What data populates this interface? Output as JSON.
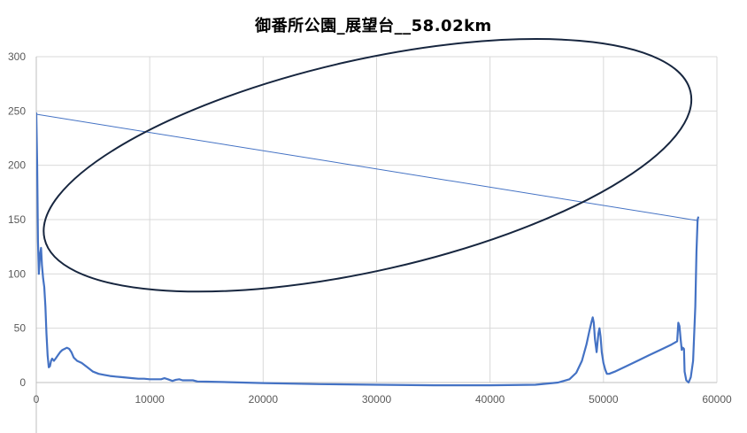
{
  "chart_data": {
    "type": "line",
    "title": "御番所公園_展望台__58.02km",
    "xlabel": "",
    "ylabel": "",
    "xlim": [
      0,
      60000
    ],
    "ylim": [
      0,
      300
    ],
    "x_ticks": [
      0,
      10000,
      20000,
      30000,
      40000,
      50000,
      60000
    ],
    "y_ticks": [
      0,
      50,
      100,
      150,
      200,
      250,
      300
    ],
    "x_tick_labels": [
      "0",
      "10000",
      "20000",
      "30000",
      "40000",
      "50000",
      "60000"
    ],
    "y_tick_labels": [
      "0",
      "50",
      "100",
      "150",
      "200",
      "250",
      "300"
    ],
    "grid": true,
    "legend": "none",
    "series": [
      {
        "color": "#4472c4",
        "points": [
          [
            0,
            248
          ],
          [
            80,
            200
          ],
          [
            150,
            130
          ],
          [
            230,
            100
          ],
          [
            330,
            118
          ],
          [
            420,
            124
          ],
          [
            500,
            108
          ],
          [
            600,
            96
          ],
          [
            700,
            88
          ],
          [
            800,
            70
          ],
          [
            900,
            45
          ],
          [
            1000,
            25
          ],
          [
            1100,
            14
          ],
          [
            1200,
            15
          ],
          [
            1300,
            20
          ],
          [
            1400,
            22
          ],
          [
            1550,
            20
          ],
          [
            1700,
            22
          ],
          [
            1900,
            25
          ],
          [
            2100,
            28
          ],
          [
            2300,
            30
          ],
          [
            2500,
            31
          ],
          [
            2700,
            32
          ],
          [
            2900,
            31
          ],
          [
            3100,
            28
          ],
          [
            3300,
            23
          ],
          [
            3600,
            20
          ],
          [
            4000,
            18
          ],
          [
            4500,
            14
          ],
          [
            5000,
            10
          ],
          [
            5500,
            8
          ],
          [
            6000,
            7
          ],
          [
            6500,
            6
          ],
          [
            7000,
            5.5
          ],
          [
            7500,
            5
          ],
          [
            8000,
            4.5
          ],
          [
            8500,
            4
          ],
          [
            9000,
            3.5
          ],
          [
            9500,
            3.5
          ],
          [
            10000,
            3
          ],
          [
            10500,
            3
          ],
          [
            11000,
            3
          ],
          [
            11300,
            4
          ],
          [
            11600,
            3
          ],
          [
            12000,
            1.5
          ],
          [
            12300,
            2.5
          ],
          [
            12600,
            3
          ],
          [
            12900,
            2
          ],
          [
            13200,
            2
          ],
          [
            13500,
            2
          ],
          [
            13800,
            2
          ],
          [
            14200,
            1
          ],
          [
            15000,
            0.8
          ],
          [
            17000,
            0.3
          ],
          [
            20000,
            -0.5
          ],
          [
            25000,
            -1.5
          ],
          [
            30000,
            -2
          ],
          [
            35000,
            -2.5
          ],
          [
            40000,
            -2.5
          ],
          [
            44000,
            -2
          ],
          [
            46000,
            0
          ],
          [
            47000,
            3
          ],
          [
            47600,
            9
          ],
          [
            48100,
            20
          ],
          [
            48500,
            35
          ],
          [
            48750,
            47
          ],
          [
            48950,
            56
          ],
          [
            49050,
            60
          ],
          [
            49150,
            55
          ],
          [
            49250,
            40
          ],
          [
            49400,
            28
          ],
          [
            49550,
            45
          ],
          [
            49650,
            50
          ],
          [
            49750,
            42
          ],
          [
            49850,
            28
          ],
          [
            50000,
            18
          ],
          [
            50150,
            12
          ],
          [
            50300,
            8
          ],
          [
            50500,
            8
          ],
          [
            51000,
            10
          ],
          [
            52000,
            15
          ],
          [
            53000,
            20
          ],
          [
            54000,
            25
          ],
          [
            55000,
            30
          ],
          [
            56000,
            35
          ],
          [
            56500,
            38
          ],
          [
            56600,
            55
          ],
          [
            56700,
            52
          ],
          [
            56800,
            40
          ],
          [
            56900,
            30
          ],
          [
            57000,
            32
          ],
          [
            57100,
            31
          ],
          [
            57150,
            10
          ],
          [
            57300,
            2
          ],
          [
            57500,
            0
          ],
          [
            57700,
            5
          ],
          [
            57900,
            20
          ],
          [
            58100,
            70
          ],
          [
            58200,
            120
          ],
          [
            58300,
            150
          ],
          [
            58350,
            152
          ]
        ]
      },
      {
        "color": "#4472c4",
        "points": [
          [
            0,
            247
          ],
          [
            58350,
            149
          ]
        ]
      }
    ],
    "annotations": [
      {
        "type": "ellipse",
        "color": "#17263f",
        "center": [
          29200,
          200
        ],
        "rx": 29200,
        "ry": 97,
        "rotation_deg": -12.8
      }
    ]
  }
}
